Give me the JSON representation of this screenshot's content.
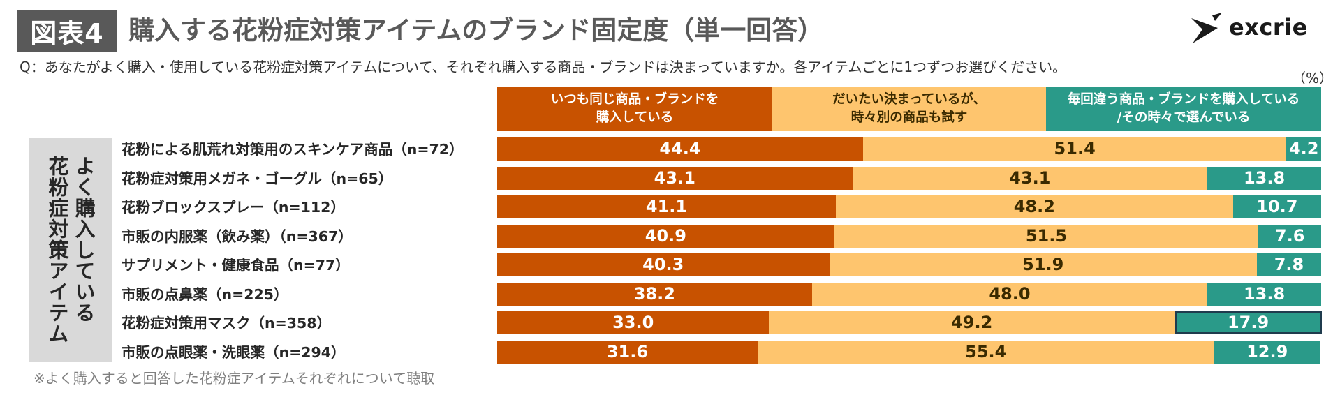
{
  "header": {
    "figure_badge": "図表4",
    "title": "購入する花粉症対策アイテムのブランド固定度（単一回答）",
    "brand_name": "excrie"
  },
  "question": "Q：あなたがよく購入・使用している花粉症対策アイテムについて、それぞれ購入する商品・ブランドは決まっていますか。各アイテムごとに1つずつお選びください。",
  "unit_label": "（%）",
  "group_label": "よく購入している\n花粉症対策アイテム",
  "footnote": "※よく購入すると回答した花粉症アイテムそれぞれについて聴取",
  "colors": {
    "series1": "#c85200",
    "series2": "#fec56e",
    "series3": "#2a9a89",
    "highlight_border": "#1f3b4d"
  },
  "chart_data": {
    "type": "bar",
    "orientation": "horizontal",
    "stacked": true,
    "unit": "%",
    "xlim": [
      0,
      100
    ],
    "categories": [
      "花粉による肌荒れ対策用のスキンケア商品（n=72）",
      "花粉症対策用メガネ・ゴーグル（n=65）",
      "花粉ブロックスプレー（n=112）",
      "市販の内服薬（飲み薬）（n=367）",
      "サプリメント・健康食品（n=77）",
      "市販の点鼻薬（n=225）",
      "花粉症対策用マスク（n=358）",
      "市販の点眼薬・洗眼薬（n=294）"
    ],
    "series": [
      {
        "name": "いつも同じ商品・ブランドを\n購入している",
        "values": [
          44.4,
          43.1,
          41.1,
          40.9,
          40.3,
          38.2,
          33.0,
          31.6
        ]
      },
      {
        "name": "だいたい決まっているが、\n時々別の商品も試す",
        "values": [
          51.4,
          43.1,
          48.2,
          51.5,
          51.9,
          48.0,
          49.2,
          55.4
        ]
      },
      {
        "name": "毎回違う商品・ブランドを購入している\n/その時々で選んでいる",
        "values": [
          4.2,
          13.8,
          10.7,
          7.6,
          7.8,
          13.8,
          17.9,
          12.9
        ]
      }
    ],
    "highlighted": {
      "category_index": 6,
      "series_index": 2
    }
  }
}
